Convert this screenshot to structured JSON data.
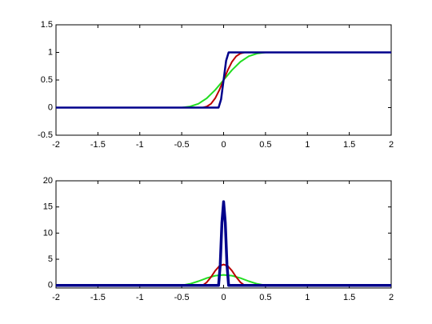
{
  "chart_data": [
    {
      "type": "line",
      "xlim": [
        -2,
        2
      ],
      "ylim": [
        -0.5,
        1.5
      ],
      "xticks": [
        -2,
        -1.5,
        -1,
        -0.5,
        0,
        0.5,
        1,
        1.5,
        2
      ],
      "yticks": [
        -0.5,
        0,
        0.5,
        1,
        1.5
      ],
      "grid": false,
      "series": [
        {
          "color": "#22dd22",
          "x": [
            -2,
            -0.5,
            -0.4,
            -0.3,
            -0.2,
            -0.1,
            0,
            0.1,
            0.2,
            0.3,
            0.4,
            0.5,
            2
          ],
          "values": [
            0,
            0,
            0.02,
            0.07,
            0.17,
            0.32,
            0.5,
            0.68,
            0.83,
            0.93,
            0.98,
            1,
            1
          ]
        },
        {
          "color": "#bb0000",
          "x": [
            -2,
            -0.25,
            -0.2,
            -0.15,
            -0.1,
            -0.05,
            0,
            0.05,
            0.1,
            0.15,
            0.2,
            0.25,
            2
          ],
          "values": [
            0,
            0,
            0.02,
            0.07,
            0.17,
            0.32,
            0.5,
            0.68,
            0.83,
            0.93,
            0.98,
            1,
            1
          ]
        },
        {
          "color": "#00008b",
          "x": [
            -2,
            -0.06,
            -0.03,
            0,
            0.03,
            0.06,
            2
          ],
          "values": [
            0,
            0,
            0.15,
            0.5,
            0.85,
            1,
            1
          ]
        }
      ]
    },
    {
      "type": "line",
      "xlim": [
        -2,
        2
      ],
      "ylim": [
        -0.5,
        20
      ],
      "xticks": [
        -2,
        -1.5,
        -1,
        -0.5,
        0,
        0.5,
        1,
        1.5,
        2
      ],
      "yticks": [
        0,
        5,
        10,
        15,
        20
      ],
      "grid": false,
      "series": [
        {
          "color": "#22dd22",
          "x": [
            -2,
            -0.5,
            -0.4,
            -0.3,
            -0.2,
            -0.1,
            0,
            0.1,
            0.2,
            0.3,
            0.4,
            0.5,
            2
          ],
          "values": [
            0,
            0,
            0.3,
            0.8,
            1.4,
            1.85,
            2,
            1.85,
            1.4,
            0.8,
            0.3,
            0,
            0
          ]
        },
        {
          "color": "#bb0000",
          "x": [
            -2,
            -0.25,
            -0.2,
            -0.15,
            -0.1,
            -0.05,
            0,
            0.05,
            0.1,
            0.15,
            0.2,
            0.25,
            2
          ],
          "values": [
            0,
            0,
            0.6,
            1.6,
            2.8,
            3.7,
            4,
            3.7,
            2.8,
            1.6,
            0.6,
            0,
            0
          ]
        },
        {
          "color": "#00008b",
          "x": [
            -2,
            -0.06,
            -0.04,
            -0.02,
            0,
            0.02,
            0.04,
            0.06,
            2
          ],
          "values": [
            0,
            0,
            4,
            12,
            16,
            12,
            4,
            0,
            0
          ]
        }
      ]
    }
  ]
}
